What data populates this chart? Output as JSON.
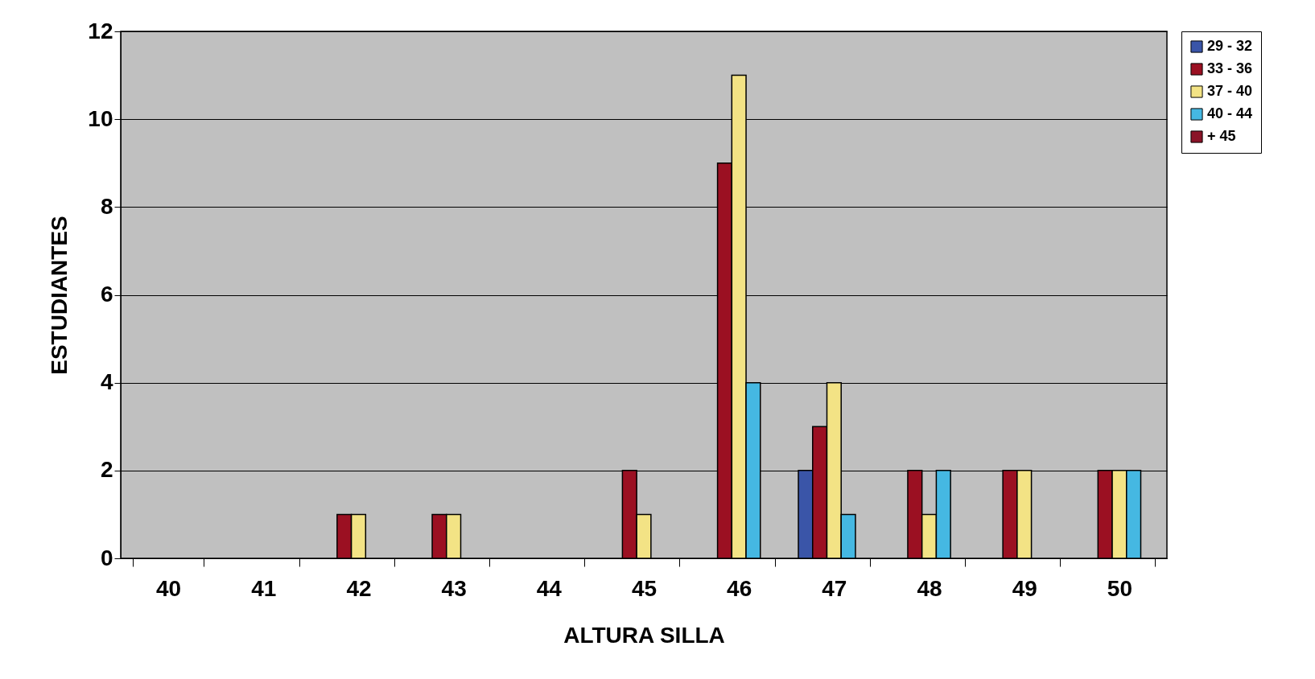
{
  "chart_data": {
    "type": "bar",
    "xlabel": "ALTURA SILLA",
    "ylabel": "ESTUDIANTES",
    "categories": [
      "40",
      "41",
      "42",
      "43",
      "44",
      "45",
      "46",
      "47",
      "48",
      "49",
      "50"
    ],
    "series": [
      {
        "name": "29 - 32",
        "color": "#3a55a8",
        "values": [
          null,
          null,
          null,
          null,
          null,
          null,
          null,
          2,
          null,
          null,
          null
        ]
      },
      {
        "name": "33 - 36",
        "color": "#9b1022",
        "values": [
          null,
          null,
          1,
          1,
          null,
          2,
          9,
          3,
          2,
          2,
          2
        ]
      },
      {
        "name": "37 - 40",
        "color": "#f3e385",
        "values": [
          null,
          null,
          1,
          1,
          null,
          1,
          11,
          4,
          1,
          2,
          2
        ]
      },
      {
        "name": "40 - 44",
        "color": "#45b8e2",
        "values": [
          null,
          null,
          null,
          null,
          null,
          null,
          4,
          1,
          2,
          null,
          2
        ]
      },
      {
        "name": "+ 45",
        "color": "#8a1428",
        "values": [
          null,
          null,
          null,
          null,
          null,
          null,
          null,
          null,
          null,
          null,
          null
        ]
      }
    ],
    "ylim": [
      0,
      12
    ],
    "yticks": [
      0,
      2,
      4,
      6,
      8,
      10,
      12
    ],
    "grid": "y",
    "legend": "right"
  }
}
